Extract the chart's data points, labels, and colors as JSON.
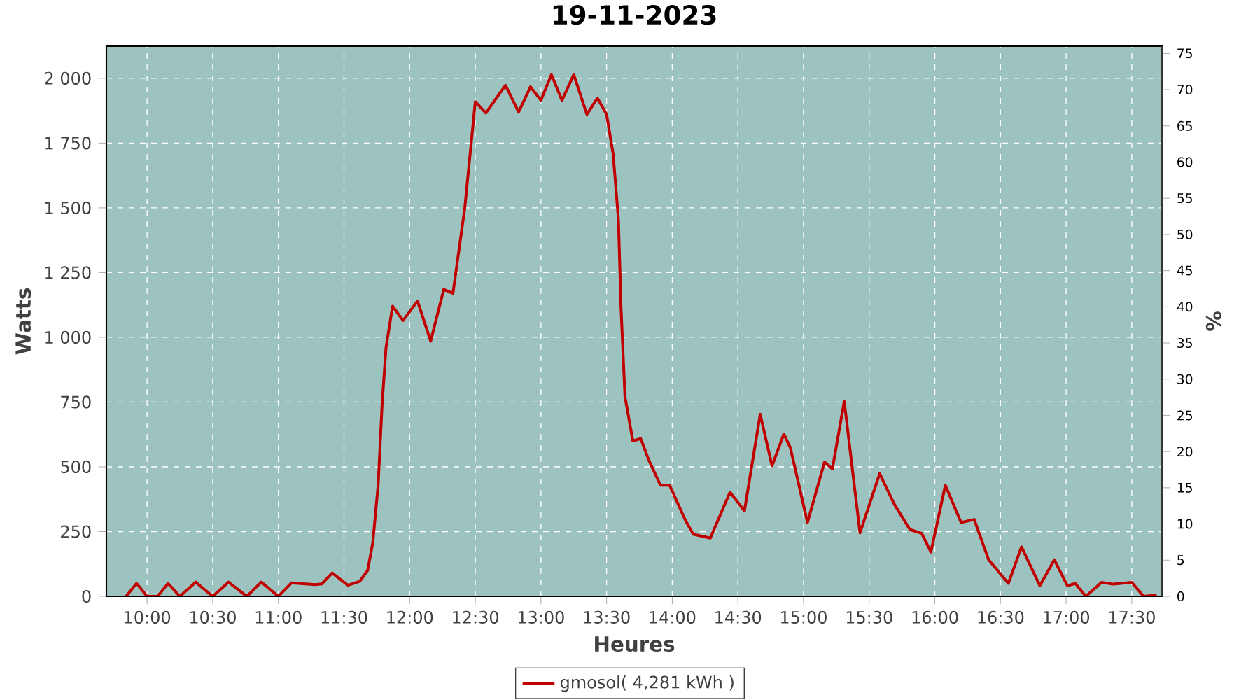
{
  "chart_data": {
    "type": "line",
    "title": "19-11-2023",
    "xlabel": "Heures",
    "ylabel": "Watts",
    "y2label": "%",
    "x": [
      9.84,
      9.92,
      10.0,
      10.08,
      10.16,
      10.25,
      10.37,
      10.5,
      10.62,
      10.76,
      10.87,
      11.0,
      11.1,
      11.28,
      11.33,
      11.41,
      11.53,
      11.62,
      11.68,
      11.72,
      11.76,
      11.79,
      11.82,
      11.87,
      11.95,
      12.06,
      12.16,
      12.26,
      12.33,
      12.42,
      12.5,
      12.58,
      12.73,
      12.83,
      12.92,
      13.0,
      13.08,
      13.16,
      13.25,
      13.35,
      13.43,
      13.5,
      13.55,
      13.59,
      13.61,
      13.64,
      13.7,
      13.76,
      13.82,
      13.91,
      13.98,
      14.1,
      14.16,
      14.29,
      14.44,
      14.55,
      14.67,
      14.76,
      14.85,
      14.9,
      15.03,
      15.16,
      15.22,
      15.31,
      15.43,
      15.58,
      15.69,
      15.81,
      15.9,
      15.97,
      16.08,
      16.2,
      16.3,
      16.41,
      16.56,
      16.66,
      16.8,
      16.91,
      17.01,
      17.07,
      17.15,
      17.27,
      17.36,
      17.5,
      17.59,
      17.69
    ],
    "series": [
      {
        "name": "gmosol( 4,281 kWh )",
        "color": "#c00000",
        "values": [
          0,
          50,
          0,
          0,
          50,
          0,
          55,
          0,
          55,
          0,
          55,
          0,
          52,
          45,
          48,
          90,
          43,
          58,
          100,
          210,
          430,
          740,
          960,
          1120,
          1065,
          1140,
          985,
          1185,
          1170,
          1500,
          1910,
          1866,
          1973,
          1870,
          1967,
          1915,
          2014,
          1915,
          2014,
          1861,
          1924,
          1861,
          1708,
          1456,
          1113,
          771,
          600,
          609,
          528,
          429,
          429,
          294,
          240,
          225,
          402,
          330,
          703,
          504,
          627,
          573,
          285,
          519,
          492,
          753,
          245,
          474,
          357,
          258,
          243,
          171,
          429,
          285,
          297,
          141,
          50,
          191,
          41,
          141,
          41,
          50,
          0,
          54,
          47,
          54,
          0,
          5
        ]
      }
    ],
    "xlim": [
      9.69,
      17.73
    ],
    "ylim": [
      0,
      2124
    ],
    "xticks": [
      {
        "value": 10,
        "label": "10:00"
      },
      {
        "value": 10.5,
        "label": "10:30"
      },
      {
        "value": 11,
        "label": "11:00"
      },
      {
        "value": 11.5,
        "label": "11:30"
      },
      {
        "value": 12,
        "label": "12:00"
      },
      {
        "value": 12.5,
        "label": "12:30"
      },
      {
        "value": 13,
        "label": "13:00"
      },
      {
        "value": 13.5,
        "label": "13:30"
      },
      {
        "value": 14,
        "label": "14:00"
      },
      {
        "value": 14.5,
        "label": "14:30"
      },
      {
        "value": 15,
        "label": "15:00"
      },
      {
        "value": 15.5,
        "label": "15:30"
      },
      {
        "value": 16,
        "label": "16:00"
      },
      {
        "value": 16.5,
        "label": "16:30"
      },
      {
        "value": 17,
        "label": "17:00"
      },
      {
        "value": 17.5,
        "label": "17:30"
      }
    ],
    "yticks": [
      0,
      250,
      500,
      750,
      {
        "value": 1000,
        "label": "1 000"
      },
      {
        "value": 1250,
        "label": "1 250"
      },
      {
        "value": 1500,
        "label": "1 500"
      },
      {
        "value": 1750,
        "label": "1 750"
      },
      {
        "value": 2000,
        "label": "2 000"
      }
    ],
    "y2lim": [
      0,
      76
    ],
    "y2ticks": [
      0,
      5,
      10,
      15,
      20,
      25,
      30,
      35,
      40,
      45,
      50,
      55,
      60,
      65,
      70,
      75
    ],
    "grid": true,
    "legend": "bottom",
    "marker": "none",
    "line_style": "solid"
  }
}
